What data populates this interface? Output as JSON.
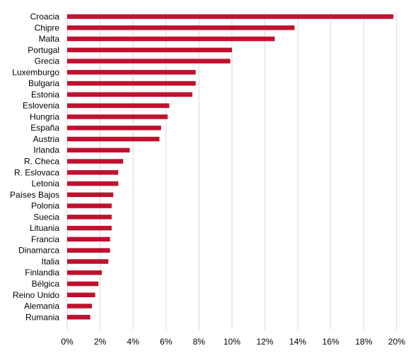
{
  "colors": {
    "bar": "#c0102e",
    "grid": "#d9d9d9",
    "text": "#000000"
  },
  "chart_data": {
    "type": "bar",
    "orientation": "horizontal",
    "categories": [
      "Croacia",
      "Chipre",
      "Malta",
      "Portugal",
      "Grecia",
      "Luxemburgo",
      "Bulgaria",
      "Estonia",
      "Eslovenia",
      "Hungria",
      "España",
      "Austria",
      "Irlanda",
      "R. Checa",
      "R. Eslovaca",
      "Letonia",
      "Países Bajos",
      "Polonia",
      "Suecia",
      "Lituania",
      "Francia",
      "Dinamarca",
      "Italia",
      "Finlandia",
      "Bélgica",
      "Reino Unido",
      "Alemania",
      "Rumania"
    ],
    "values": [
      19.8,
      13.8,
      12.6,
      10.0,
      9.9,
      7.8,
      7.8,
      7.6,
      6.2,
      6.1,
      5.7,
      5.6,
      3.8,
      3.4,
      3.1,
      3.1,
      2.8,
      2.7,
      2.7,
      2.7,
      2.6,
      2.6,
      2.5,
      2.1,
      1.9,
      1.7,
      1.5,
      1.4
    ],
    "xlim": [
      0,
      20
    ],
    "xticks": [
      "0%",
      "2%",
      "4%",
      "6%",
      "8%",
      "10%",
      "12%",
      "14%",
      "16%",
      "18%",
      "20%"
    ],
    "grid": "vertical",
    "title": "",
    "xlabel": "",
    "ylabel": ""
  }
}
